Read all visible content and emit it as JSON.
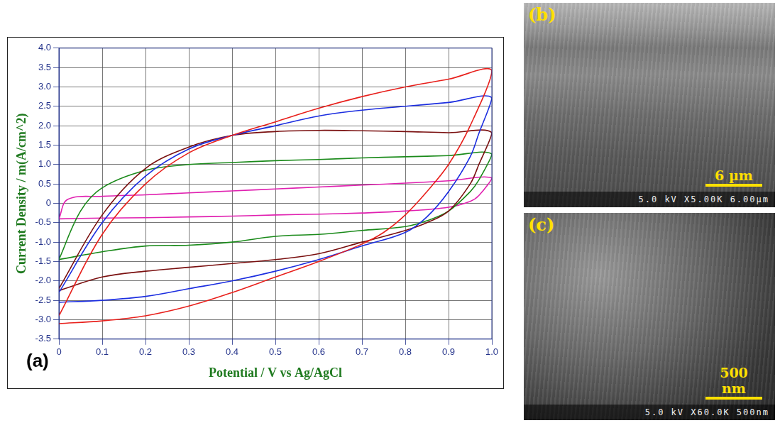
{
  "chart_data": {
    "type": "line",
    "x_label": "Potential / V vs Ag/AgCl",
    "y_label": "Current Density / m(A/cm^2)",
    "annotations": [
      "(a)"
    ],
    "grid": true,
    "xlim": [
      0,
      1.0
    ],
    "xticks": [
      0,
      0.1,
      0.2,
      0.3,
      0.4,
      0.5,
      0.6,
      0.7,
      0.8,
      0.9,
      {
        "value": 1.0,
        "label": "1.0"
      }
    ],
    "ylim": [
      -3.5,
      4.0
    ],
    "yticks": [
      {
        "value": -3.5,
        "label": "-3.5"
      },
      {
        "value": -3.0,
        "label": "-3.0"
      },
      {
        "value": -2.5,
        "label": "-2.5"
      },
      {
        "value": -2.0,
        "label": "-2.0"
      },
      {
        "value": -1.5,
        "label": "-1.5"
      },
      {
        "value": -1.0,
        "label": "-1.0"
      },
      {
        "value": -0.5,
        "label": "-0.5"
      },
      0,
      {
        "value": 0.5,
        "label": "0.5"
      },
      {
        "value": 1.0,
        "label": "1.0"
      },
      {
        "value": 1.5,
        "label": "1.5"
      },
      {
        "value": 2.0,
        "label": "2.0"
      },
      {
        "value": 2.5,
        "label": "2.5"
      },
      {
        "value": 3.0,
        "label": "3.0"
      },
      {
        "value": 3.5,
        "label": "3.5"
      },
      {
        "value": 4.0,
        "label": "4.0"
      }
    ],
    "series": [
      {
        "color": "#e8201c",
        "x": [
          0,
          0.1,
          0.2,
          0.3,
          0.4,
          0.5,
          0.6,
          0.7,
          0.8,
          0.9,
          1.0,
          0.95,
          0.9,
          0.85,
          0.8,
          0.75,
          0.7,
          0.6,
          0.5,
          0.4,
          0.3,
          0.2,
          0.1,
          0
        ],
        "values": [
          -2.9,
          -0.8,
          0.5,
          1.3,
          1.75,
          2.1,
          2.45,
          2.75,
          3.0,
          3.2,
          3.42,
          2.0,
          1.0,
          0.3,
          -0.3,
          -0.75,
          -1.05,
          -1.5,
          -1.9,
          -2.3,
          -2.65,
          -2.9,
          -3.03,
          -3.1
        ]
      },
      {
        "color": "#1c2ee0",
        "x": [
          0,
          0.1,
          0.2,
          0.3,
          0.4,
          0.5,
          0.6,
          0.7,
          0.8,
          0.9,
          1.0,
          0.97,
          0.95,
          0.9,
          0.85,
          0.8,
          0.7,
          0.6,
          0.5,
          0.4,
          0.3,
          0.2,
          0.1,
          0
        ],
        "values": [
          -2.3,
          -0.5,
          0.7,
          1.4,
          1.75,
          2.0,
          2.25,
          2.4,
          2.5,
          2.6,
          2.72,
          1.8,
          1.2,
          0.3,
          -0.35,
          -0.75,
          -1.1,
          -1.45,
          -1.75,
          -2.0,
          -2.2,
          -2.4,
          -2.5,
          -2.55
        ]
      },
      {
        "color": "#7a1010",
        "x": [
          0,
          0.1,
          0.2,
          0.3,
          0.4,
          0.5,
          0.6,
          0.7,
          0.8,
          0.9,
          1.0,
          0.97,
          0.95,
          0.9,
          0.85,
          0.8,
          0.7,
          0.6,
          0.5,
          0.4,
          0.3,
          0.2,
          0.1,
          0
        ],
        "values": [
          -2.2,
          -0.3,
          0.9,
          1.45,
          1.75,
          1.85,
          1.88,
          1.87,
          1.85,
          1.82,
          1.82,
          1.0,
          0.5,
          -0.2,
          -0.5,
          -0.7,
          -1.0,
          -1.3,
          -1.45,
          -1.55,
          -1.65,
          -1.75,
          -1.9,
          -2.25
        ]
      },
      {
        "color": "#1a8a1a",
        "x": [
          0,
          0.05,
          0.1,
          0.2,
          0.3,
          0.4,
          0.5,
          0.6,
          0.7,
          0.8,
          0.9,
          1.0,
          0.97,
          0.95,
          0.9,
          0.85,
          0.8,
          0.7,
          0.6,
          0.5,
          0.4,
          0.3,
          0.2,
          0.1,
          0
        ],
        "values": [
          -1.45,
          -0.2,
          0.4,
          0.85,
          1.0,
          1.05,
          1.1,
          1.13,
          1.17,
          1.2,
          1.23,
          1.27,
          0.6,
          0.3,
          -0.2,
          -0.45,
          -0.6,
          -0.7,
          -0.8,
          -0.85,
          -1.0,
          -1.08,
          -1.1,
          -1.25,
          -1.45
        ]
      },
      {
        "color": "#e020b0",
        "x": [
          0,
          0.02,
          0.1,
          0.2,
          0.3,
          0.4,
          0.5,
          0.6,
          0.7,
          0.8,
          0.9,
          1.0,
          0.97,
          0.95,
          0.9,
          0.8,
          0.7,
          0.6,
          0.5,
          0.4,
          0.3,
          0.2,
          0.1,
          0
        ],
        "values": [
          -0.4,
          0.1,
          0.18,
          0.22,
          0.27,
          0.32,
          0.37,
          0.42,
          0.47,
          0.52,
          0.58,
          0.65,
          0.2,
          0.05,
          -0.1,
          -0.2,
          -0.25,
          -0.28,
          -0.3,
          -0.33,
          -0.35,
          -0.37,
          -0.38,
          -0.4
        ]
      }
    ]
  },
  "images": [
    {
      "label": "(b)",
      "scale_bar": "6 µm",
      "caption": "5.0 kV X5.00K 6.00µm"
    },
    {
      "label": "(c)",
      "scale_bar": "500 nm",
      "caption": "5.0 kV X60.0K 500nm"
    }
  ]
}
